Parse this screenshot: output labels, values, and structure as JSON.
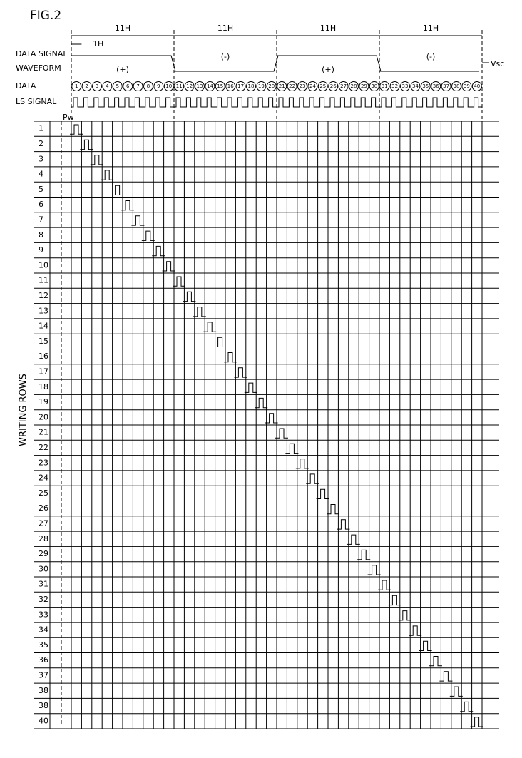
{
  "figure": "FIG.2",
  "period_labels": [
    "11H",
    "11H",
    "11H",
    "11H"
  ],
  "unit_label": "1H",
  "waveform_label": [
    "DATA SIGNAL",
    "WAVEFORM"
  ],
  "polarities": [
    "(+)",
    "(-)",
    "(+)",
    "(-)"
  ],
  "reference": "Vsc",
  "data_label": "DATA",
  "data_numbers": [
    "1",
    "2",
    "3",
    "4",
    "5",
    "6",
    "7",
    "8",
    "9",
    "10",
    "11",
    "12",
    "13",
    "14",
    "15",
    "16",
    "17",
    "18",
    "19",
    "20",
    "21",
    "22",
    "23",
    "24",
    "25",
    "26",
    "27",
    "28",
    "29",
    "30",
    "31",
    "32",
    "33",
    "34",
    "35",
    "36",
    "37",
    "38",
    "39",
    "40"
  ],
  "ls_label": "LS SIGNAL",
  "pulse_label": "Pw",
  "axis_label": "WRITING ROWS",
  "row_labels": [
    "1",
    "2",
    "3",
    "4",
    "5",
    "6",
    "7",
    "8",
    "9",
    "10",
    "11",
    "12",
    "13",
    "14",
    "15",
    "16",
    "17",
    "18",
    "19",
    "20",
    "21",
    "22",
    "23",
    "24",
    "25",
    "26",
    "27",
    "28",
    "29",
    "30",
    "31",
    "32",
    "33",
    "34",
    "35",
    "36",
    "37",
    "38",
    "38",
    "40"
  ]
}
